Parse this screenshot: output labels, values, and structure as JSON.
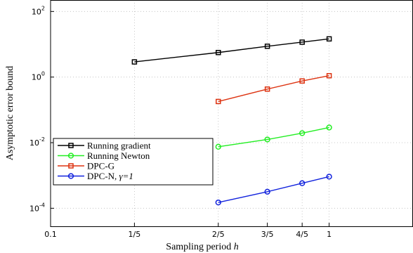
{
  "chart_data": {
    "type": "line",
    "xlabel": "Sampling period ",
    "xlabel_var": "h",
    "ylabel": "Asymptotic error bound",
    "x_scale": "log",
    "y_scale": "log",
    "xlim": [
      0.1,
      2
    ],
    "ylim": [
      0.0001,
      100
    ],
    "grid": true,
    "legend_position": "bottom-left",
    "x_ticks": [
      {
        "value": 0.1,
        "label": "0.1"
      },
      {
        "value": 0.2,
        "label": "1/5"
      },
      {
        "value": 0.4,
        "label": "2/5"
      },
      {
        "value": 0.6,
        "label": "3/5"
      },
      {
        "value": 0.8,
        "label": "4/5"
      },
      {
        "value": 1.0,
        "label": "1"
      }
    ],
    "y_ticks": [
      {
        "value": 0.0001,
        "base": "10",
        "exp": "-4"
      },
      {
        "value": 0.01,
        "base": "10",
        "exp": "-2"
      },
      {
        "value": 1,
        "base": "10",
        "exp": "0"
      },
      {
        "value": 100,
        "base": "10",
        "exp": "2"
      }
    ],
    "series": [
      {
        "name": "Running gradient",
        "color": "#000000",
        "marker": "square",
        "x": [
          0.2,
          0.4,
          0.6,
          0.8,
          1.0
        ],
        "y": [
          2.9,
          5.6,
          8.7,
          11.6,
          14.6
        ]
      },
      {
        "name": "Running Newton",
        "color": "#22ee22",
        "marker": "circle",
        "x": [
          0.4,
          0.6,
          0.8,
          1.0
        ],
        "y": [
          0.0075,
          0.0125,
          0.0195,
          0.029
        ]
      },
      {
        "name": "DPC-G",
        "color": "#dd3311",
        "marker": "square",
        "x": [
          0.4,
          0.6,
          0.8,
          1.0
        ],
        "y": [
          0.18,
          0.43,
          0.76,
          1.1
        ]
      },
      {
        "name": "DPC-N, ",
        "name_symbol": "γ=1",
        "color": "#1122dd",
        "marker": "circle",
        "x": [
          0.4,
          0.6,
          0.8,
          1.0
        ],
        "y": [
          0.00015,
          0.00032,
          0.00058,
          0.00092
        ]
      }
    ]
  }
}
